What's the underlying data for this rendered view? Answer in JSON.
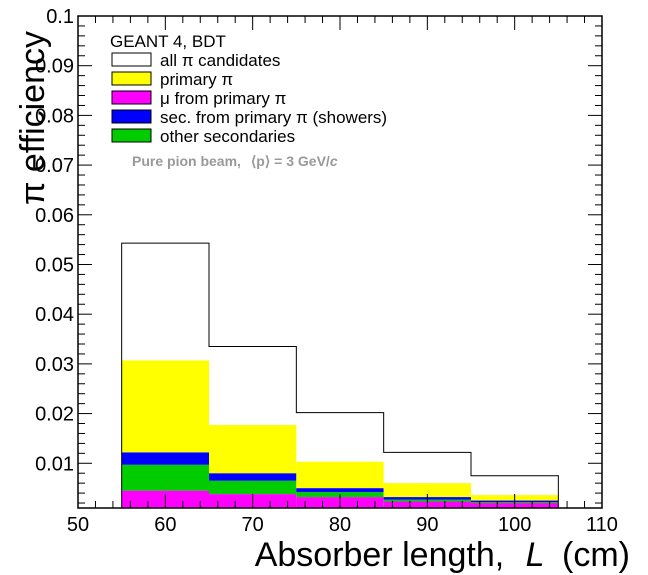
{
  "chart_data": {
    "type": "bar",
    "subtype": "stacked histogram",
    "xlabel_prefix": "Absorber length,",
    "xlabel_var": "L",
    "xlabel_unit": "(cm)",
    "ylabel": "π efficiency",
    "xlim": [
      50,
      110
    ],
    "ylim": [
      0.001,
      0.1
    ],
    "xticks": [
      50,
      60,
      70,
      80,
      90,
      100,
      110
    ],
    "yticks": [
      0.01,
      0.02,
      0.03,
      0.04,
      0.05,
      0.06,
      0.07,
      0.08,
      0.09,
      0.1
    ],
    "ytick_labels": [
      "0.01",
      "0.02",
      "0.03",
      "0.04",
      "0.05",
      "0.06",
      "0.07",
      "0.08",
      "0.09",
      "0.1"
    ],
    "bin_edges": [
      55,
      65,
      75,
      85,
      95,
      105
    ],
    "legend_title": "GEANT 4, BDT",
    "legend_position": "top-left",
    "annotation": {
      "prefix": "Pure pion beam,",
      "mean": "⟨p⟩ = 3 GeV/",
      "unit": "c"
    },
    "series": [
      {
        "name": "all   π candidates",
        "key": "all",
        "style": "outline",
        "color": "#000000",
        "values": [
          0.0533,
          0.0325,
          0.0192,
          0.0112,
          0.0065
        ]
      },
      {
        "name": "primary   π",
        "key": "primary",
        "color": "#ffff00",
        "values": [
          0.0185,
          0.0097,
          0.0053,
          0.0028,
          0.0011
        ]
      },
      {
        "name": "μ from primary   π",
        "key": "mu",
        "color": "#ff00ff",
        "values": [
          0.0035,
          0.0028,
          0.0022,
          0.0013,
          0.001
        ]
      },
      {
        "name": "sec. from primary   π (showers)",
        "key": "sec",
        "color": "#0000ff",
        "values": [
          0.0025,
          0.0015,
          0.0008,
          0.0005,
          0.0003
        ]
      },
      {
        "name": "other secondaries",
        "key": "other",
        "color": "#00cc00",
        "values": [
          0.0052,
          0.0027,
          0.001,
          0.0004,
          0.0002
        ]
      }
    ]
  }
}
